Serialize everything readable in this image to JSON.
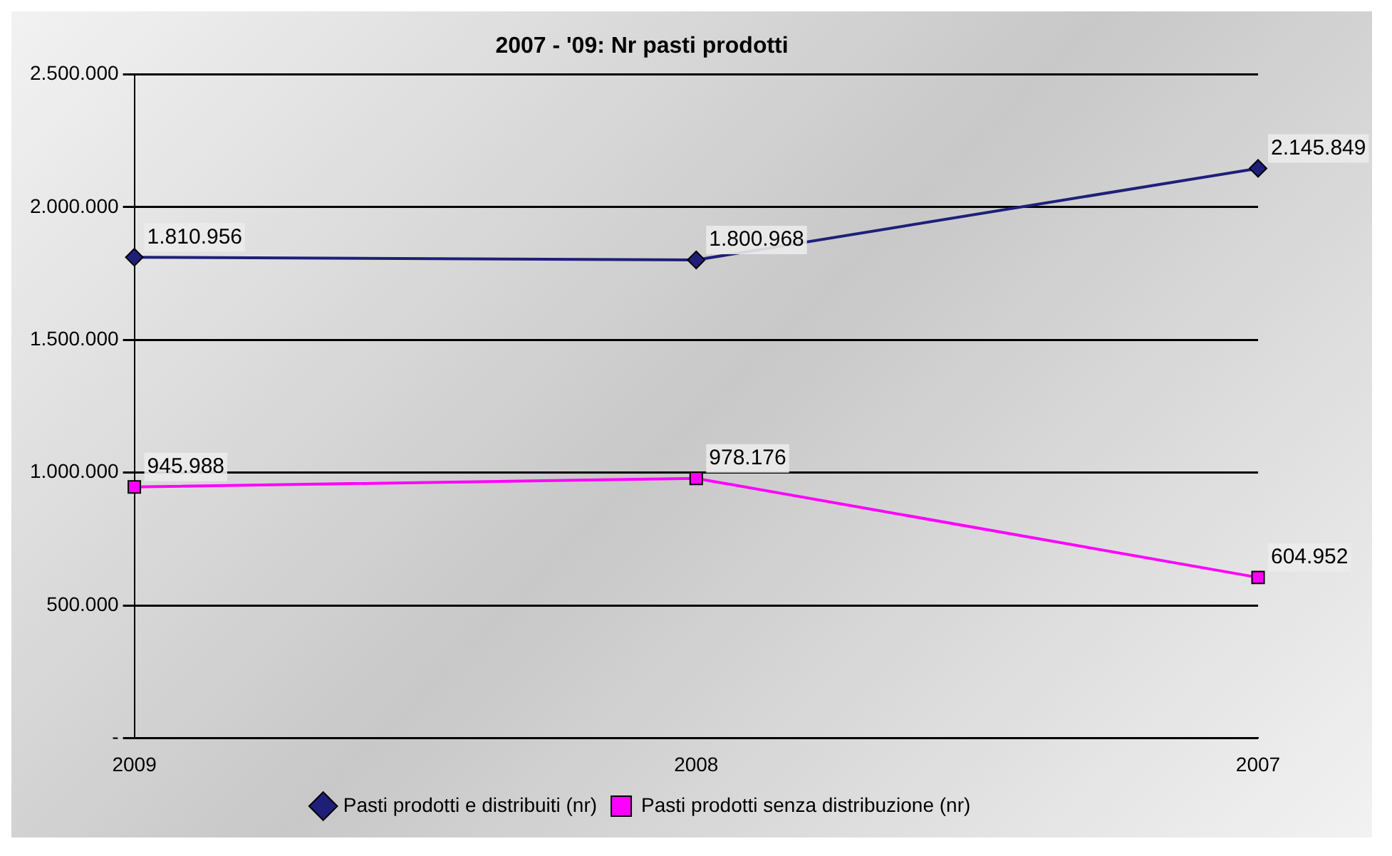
{
  "chart_data": {
    "type": "line",
    "title": "2007 - '09: Nr pasti prodotti",
    "categories": [
      "2009",
      "2008",
      "2007"
    ],
    "series": [
      {
        "name": "Pasti prodotti e distribuiti (nr)",
        "color": "#1f1f7a",
        "marker": "diamond",
        "values": [
          1810956,
          1800968,
          2145849
        ],
        "value_labels": [
          "1.810.956",
          "1.800.968",
          "2.145.849"
        ]
      },
      {
        "name": "Pasti prodotti senza distribuzione (nr)",
        "color": "#ff00ff",
        "marker": "square",
        "values": [
          945988,
          978176,
          604952
        ],
        "value_labels": [
          "945.988",
          "978.176",
          "604.952"
        ]
      }
    ],
    "ylim": [
      0,
      2500000
    ],
    "yticks": [
      {
        "value": 0,
        "label": "-"
      },
      {
        "value": 500000,
        "label": "500.000"
      },
      {
        "value": 1000000,
        "label": "1.000.000"
      },
      {
        "value": 1500000,
        "label": "1.500.000"
      },
      {
        "value": 2000000,
        "label": "2.000.000"
      },
      {
        "value": 2500000,
        "label": "2.500.000"
      }
    ],
    "grid": "y",
    "legend": "bottom"
  }
}
